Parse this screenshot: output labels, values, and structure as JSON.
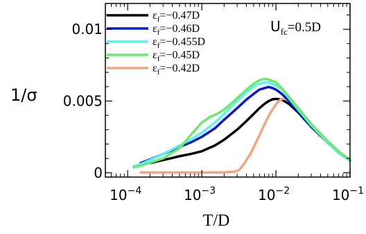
{
  "chart_data": {
    "type": "line",
    "xlabel": "T/D",
    "ylabel": "1/σ",
    "xscale": "log",
    "xlim": [
      5e-05,
      0.1
    ],
    "ylim": [
      -0.0003,
      0.0118
    ],
    "x_ticks": [
      {
        "value": 0.0001,
        "label_base": "10",
        "label_exp": "−4"
      },
      {
        "value": 0.001,
        "label_base": "10",
        "label_exp": "−3"
      },
      {
        "value": 0.01,
        "label_base": "10",
        "label_exp": "−2"
      },
      {
        "value": 0.1,
        "label_base": "10",
        "label_exp": "−1"
      }
    ],
    "y_ticks": [
      {
        "value": 0,
        "label": "0"
      },
      {
        "value": 0.005,
        "label": "0.005"
      },
      {
        "value": 0.01,
        "label": "0.01"
      }
    ],
    "annotation": {
      "base": "U",
      "sub": "fc",
      "rest": "=0.5D"
    },
    "legend_position": "top-left",
    "grid": false,
    "series": [
      {
        "legend_pre": "ε",
        "legend_sub": "f",
        "legend_rest": "=−0.47D",
        "color": "#000000",
        "points": [
          [
            0.0002,
            0.00068
          ],
          [
            0.0003,
            0.00088
          ],
          [
            0.0005,
            0.00115
          ],
          [
            0.0007,
            0.0013
          ],
          [
            0.001,
            0.0015
          ],
          [
            0.0015,
            0.0019
          ],
          [
            0.002,
            0.0023
          ],
          [
            0.003,
            0.003
          ],
          [
            0.004,
            0.0036
          ],
          [
            0.005,
            0.0041
          ],
          [
            0.006,
            0.0045
          ],
          [
            0.007,
            0.0048
          ],
          [
            0.008,
            0.005
          ],
          [
            0.009,
            0.00512
          ],
          [
            0.01,
            0.00515
          ],
          [
            0.012,
            0.0051
          ],
          [
            0.015,
            0.0048
          ],
          [
            0.02,
            0.0042
          ],
          [
            0.03,
            0.0032
          ],
          [
            0.05,
            0.0021
          ],
          [
            0.07,
            0.0014
          ],
          [
            0.1,
            0.00085
          ]
        ]
      },
      {
        "legend_pre": "ε",
        "legend_sub": "f",
        "legend_rest": "=−0.46D",
        "color": "#0a1ac8",
        "points": [
          [
            0.00015,
            0.00068
          ],
          [
            0.0002,
            0.00092
          ],
          [
            0.0003,
            0.0013
          ],
          [
            0.0005,
            0.0018
          ],
          [
            0.0007,
            0.0021
          ],
          [
            0.001,
            0.0025
          ],
          [
            0.0015,
            0.0031
          ],
          [
            0.002,
            0.0037
          ],
          [
            0.003,
            0.0045
          ],
          [
            0.004,
            0.0051
          ],
          [
            0.005,
            0.0055
          ],
          [
            0.006,
            0.0058
          ],
          [
            0.007,
            0.0059
          ],
          [
            0.008,
            0.00598
          ],
          [
            0.009,
            0.0059
          ],
          [
            0.01,
            0.0058
          ],
          [
            0.012,
            0.0055
          ],
          [
            0.015,
            0.005
          ],
          [
            0.02,
            0.0043
          ],
          [
            0.03,
            0.0032
          ],
          [
            0.05,
            0.0021
          ],
          [
            0.07,
            0.0014
          ],
          [
            0.1,
            0.00085
          ]
        ]
      },
      {
        "legend_pre": "ε",
        "legend_sub": "f",
        "legend_rest": "=−0.455D",
        "color": "#5ff0f0",
        "points": [
          [
            0.00012,
            0.00045
          ],
          [
            0.00015,
            0.0006
          ],
          [
            0.0002,
            0.00088
          ],
          [
            0.0003,
            0.0013
          ],
          [
            0.0005,
            0.0019
          ],
          [
            0.0007,
            0.0023
          ],
          [
            0.001,
            0.0028
          ],
          [
            0.0015,
            0.0035
          ],
          [
            0.002,
            0.0041
          ],
          [
            0.003,
            0.005
          ],
          [
            0.004,
            0.0056
          ],
          [
            0.005,
            0.006
          ],
          [
            0.006,
            0.0062
          ],
          [
            0.007,
            0.00628
          ],
          [
            0.008,
            0.0063
          ],
          [
            0.009,
            0.0062
          ],
          [
            0.01,
            0.0061
          ],
          [
            0.012,
            0.0058
          ],
          [
            0.015,
            0.0052
          ],
          [
            0.02,
            0.0044
          ],
          [
            0.03,
            0.0033
          ],
          [
            0.05,
            0.0021
          ],
          [
            0.07,
            0.0014
          ],
          [
            0.1,
            0.00085
          ]
        ]
      },
      {
        "legend_pre": "ε",
        "legend_sub": "f",
        "legend_rest": "=−0.45D",
        "color": "#6fe86f",
        "points": [
          [
            0.00012,
            0.00038
          ],
          [
            0.00015,
            0.0005
          ],
          [
            0.0002,
            0.0007
          ],
          [
            0.0003,
            0.001
          ],
          [
            0.0005,
            0.0017
          ],
          [
            0.0007,
            0.0026
          ],
          [
            0.001,
            0.0035
          ],
          [
            0.0013,
            0.0039
          ],
          [
            0.0016,
            0.0041
          ],
          [
            0.002,
            0.0044
          ],
          [
            0.003,
            0.0052
          ],
          [
            0.004,
            0.0058
          ],
          [
            0.005,
            0.0062
          ],
          [
            0.006,
            0.00645
          ],
          [
            0.007,
            0.00655
          ],
          [
            0.008,
            0.0065
          ],
          [
            0.009,
            0.0064
          ],
          [
            0.01,
            0.0063
          ],
          [
            0.012,
            0.0059
          ],
          [
            0.015,
            0.0053
          ],
          [
            0.02,
            0.0045
          ],
          [
            0.03,
            0.0034
          ],
          [
            0.05,
            0.0022
          ],
          [
            0.07,
            0.0015
          ],
          [
            0.1,
            0.0009
          ]
        ]
      },
      {
        "legend_pre": "ε",
        "legend_sub": "f",
        "legend_rest": "=−0.42D",
        "color": "#f4a57c",
        "points": [
          [
            0.00015,
            2e-05
          ],
          [
            0.0002,
            2e-05
          ],
          [
            0.0005,
            2e-05
          ],
          [
            0.001,
            2e-05
          ],
          [
            0.002,
            3e-05
          ],
          [
            0.0028,
            8e-05
          ],
          [
            0.0032,
            0.0002
          ],
          [
            0.0037,
            0.0006
          ],
          [
            0.0045,
            0.0013
          ],
          [
            0.0055,
            0.0022
          ],
          [
            0.0065,
            0.003
          ],
          [
            0.0075,
            0.0037
          ],
          [
            0.0085,
            0.0042
          ],
          [
            0.0095,
            0.0046
          ],
          [
            0.0105,
            0.0049
          ],
          [
            0.0115,
            0.0051
          ],
          [
            0.0125,
            0.00515
          ]
        ]
      }
    ]
  }
}
